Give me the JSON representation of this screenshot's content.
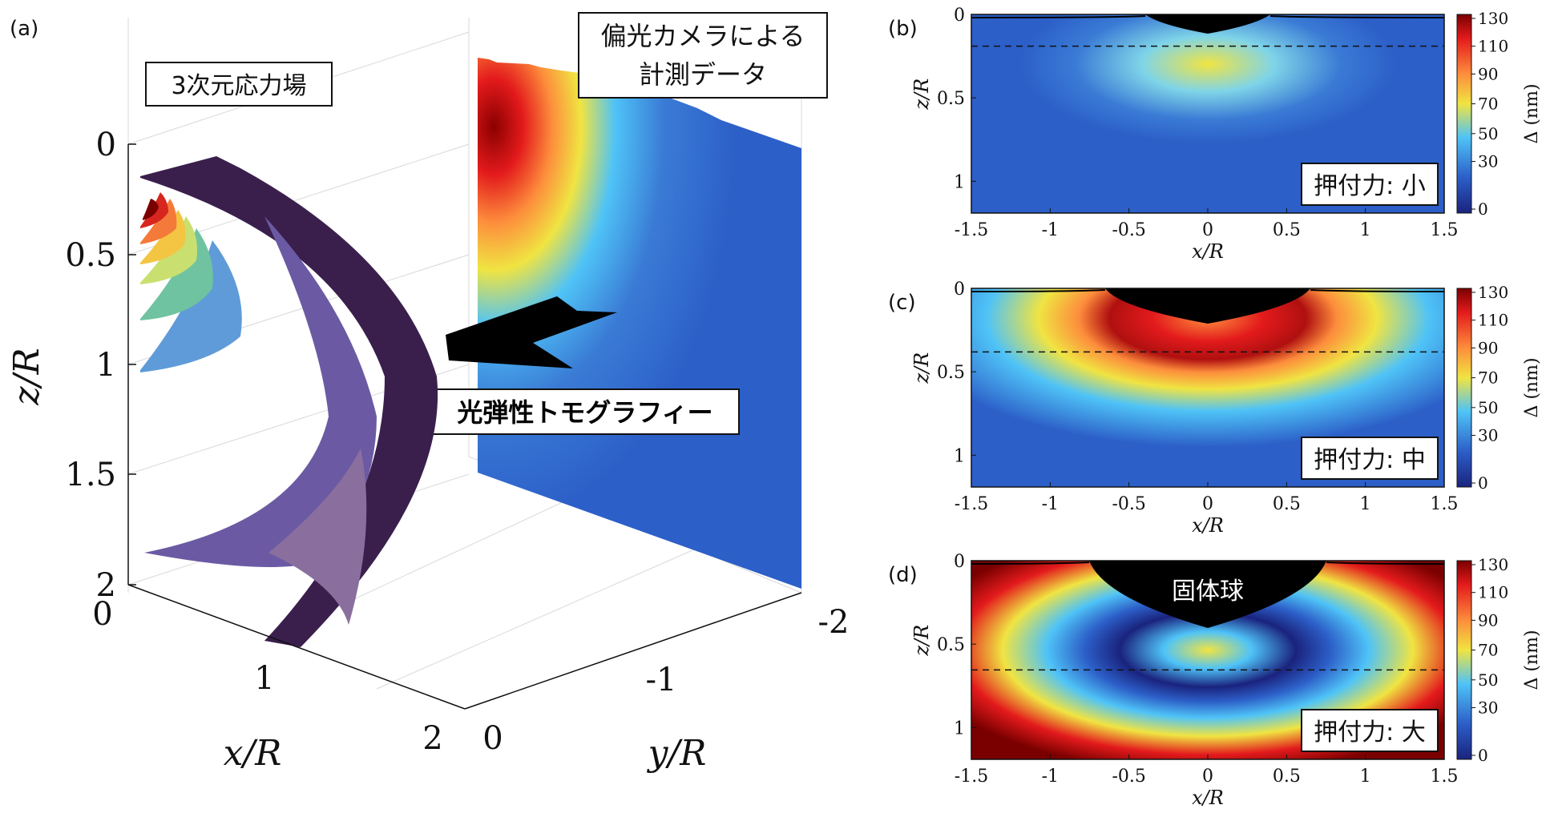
{
  "colors": {
    "jet_dark_red": "#8b0000",
    "jet_red": "#e31a1c",
    "jet_orange": "#fd8d3c",
    "jet_yellow": "#f0e442",
    "jet_cyan": "#4fc3f7",
    "jet_blue": "#2c5fc8",
    "jet_dark_blue": "#1a237e",
    "surface_purple": "#3a1f4d",
    "surface_violet": "#6b5aa3"
  },
  "panel_a": {
    "label": "(a)",
    "stress_field_label": "3次元応力場",
    "camera_label_line1": "偏光カメラによる",
    "camera_label_line2": "計測データ",
    "tomography_label": "光弾性トモグラフィー",
    "z_axis_label": "z/R",
    "z_ticks": [
      "0",
      "0.5",
      "1",
      "1.5",
      "2"
    ],
    "x_axis_label": "x/R",
    "x_ticks": [
      "0",
      "1",
      "2"
    ],
    "y_axis_label": "y/R",
    "y_ticks": [
      "0",
      "-1",
      "-2"
    ]
  },
  "panels": [
    {
      "label": "(b)",
      "force_label": "押付力: 小",
      "x_axis_label": "x/R",
      "z_axis_label": "z/R",
      "x_ticks": [
        "-1.5",
        "-1",
        "-0.5",
        "0",
        "0.5",
        "1",
        "1.5"
      ],
      "z_ticks": [
        "0",
        "0.5",
        "1"
      ],
      "colorbar_label": "Δ (nm)",
      "colorbar_ticks": [
        "130",
        "110",
        "90",
        "70",
        "50",
        "30",
        "0"
      ]
    },
    {
      "label": "(c)",
      "force_label": "押付力: 中",
      "x_axis_label": "x/R",
      "z_axis_label": "z/R",
      "x_ticks": [
        "-1.5",
        "-1",
        "-0.5",
        "0",
        "0.5",
        "1",
        "1.5"
      ],
      "z_ticks": [
        "0",
        "0.5",
        "1"
      ],
      "colorbar_label": "Δ (nm)",
      "colorbar_ticks": [
        "130",
        "110",
        "90",
        "70",
        "50",
        "30",
        "0"
      ]
    },
    {
      "label": "(d)",
      "force_label": "押付力: 大",
      "sphere_label": "固体球",
      "x_axis_label": "x/R",
      "z_axis_label": "z/R",
      "x_ticks": [
        "-1.5",
        "-1",
        "-0.5",
        "0",
        "0.5",
        "1",
        "1.5"
      ],
      "z_ticks": [
        "0",
        "0.5",
        "1"
      ],
      "colorbar_label": "Δ (nm)",
      "colorbar_ticks": [
        "130",
        "110",
        "90",
        "70",
        "50",
        "30",
        "0"
      ]
    }
  ]
}
